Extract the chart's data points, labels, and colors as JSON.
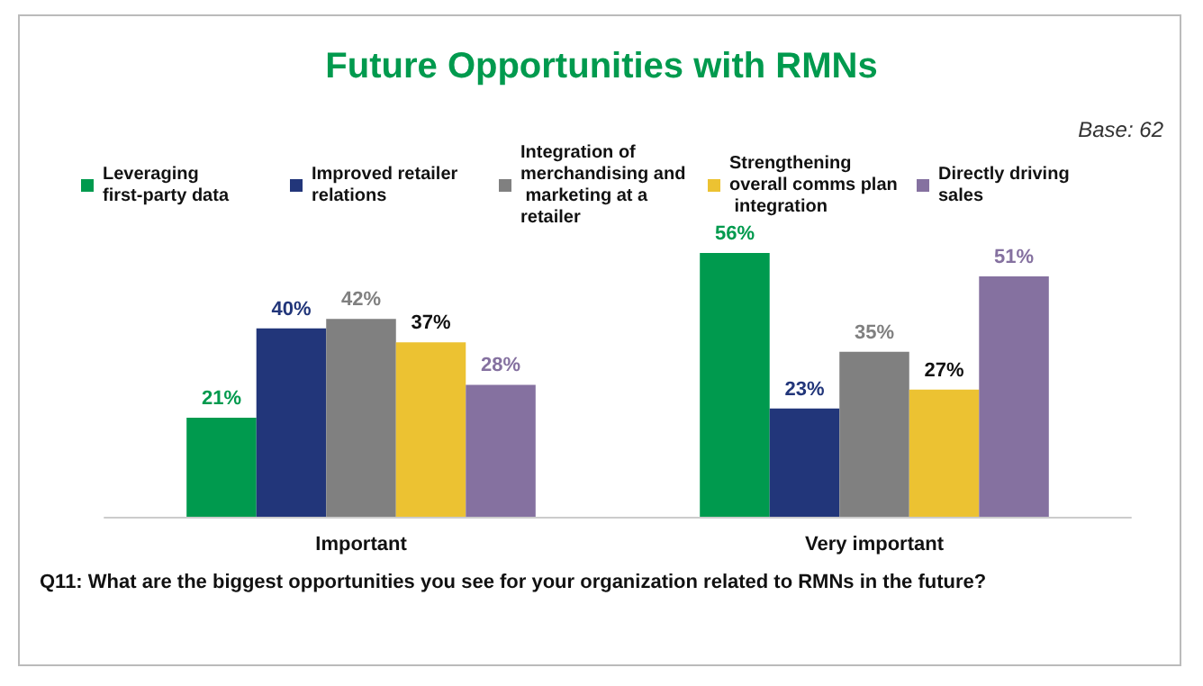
{
  "chart_data": {
    "type": "bar",
    "title": "Future Opportunities with RMNs",
    "categories": [
      "Important",
      "Very important"
    ],
    "series": [
      {
        "name": "Leveraging first-party data",
        "color": "#009a4e",
        "values": [
          21,
          56
        ],
        "value_labels": [
          "21%",
          "56%"
        ]
      },
      {
        "name": "Improved retailer relations",
        "color": "#22367a",
        "values": [
          40,
          23
        ],
        "value_labels": [
          "40%",
          "23%"
        ]
      },
      {
        "name": "Integration of merchandising and marketing at a retailer",
        "color": "#808080",
        "values": [
          42,
          35
        ],
        "value_labels": [
          "42%",
          "35%"
        ]
      },
      {
        "name": "Strengthening overall comms plan integration",
        "color": "#ecc232",
        "values": [
          37,
          27
        ],
        "value_labels": [
          "37%",
          "27%"
        ]
      },
      {
        "name": "Directly driving sales",
        "color": "#8571a0",
        "values": [
          28,
          51
        ],
        "value_labels": [
          "28%",
          "51%"
        ]
      }
    ],
    "legend": "top",
    "annotations": [
      "Base: 62",
      "Q11: What are the biggest opportunities you see for your organization related to RMNs in the future?"
    ]
  }
}
